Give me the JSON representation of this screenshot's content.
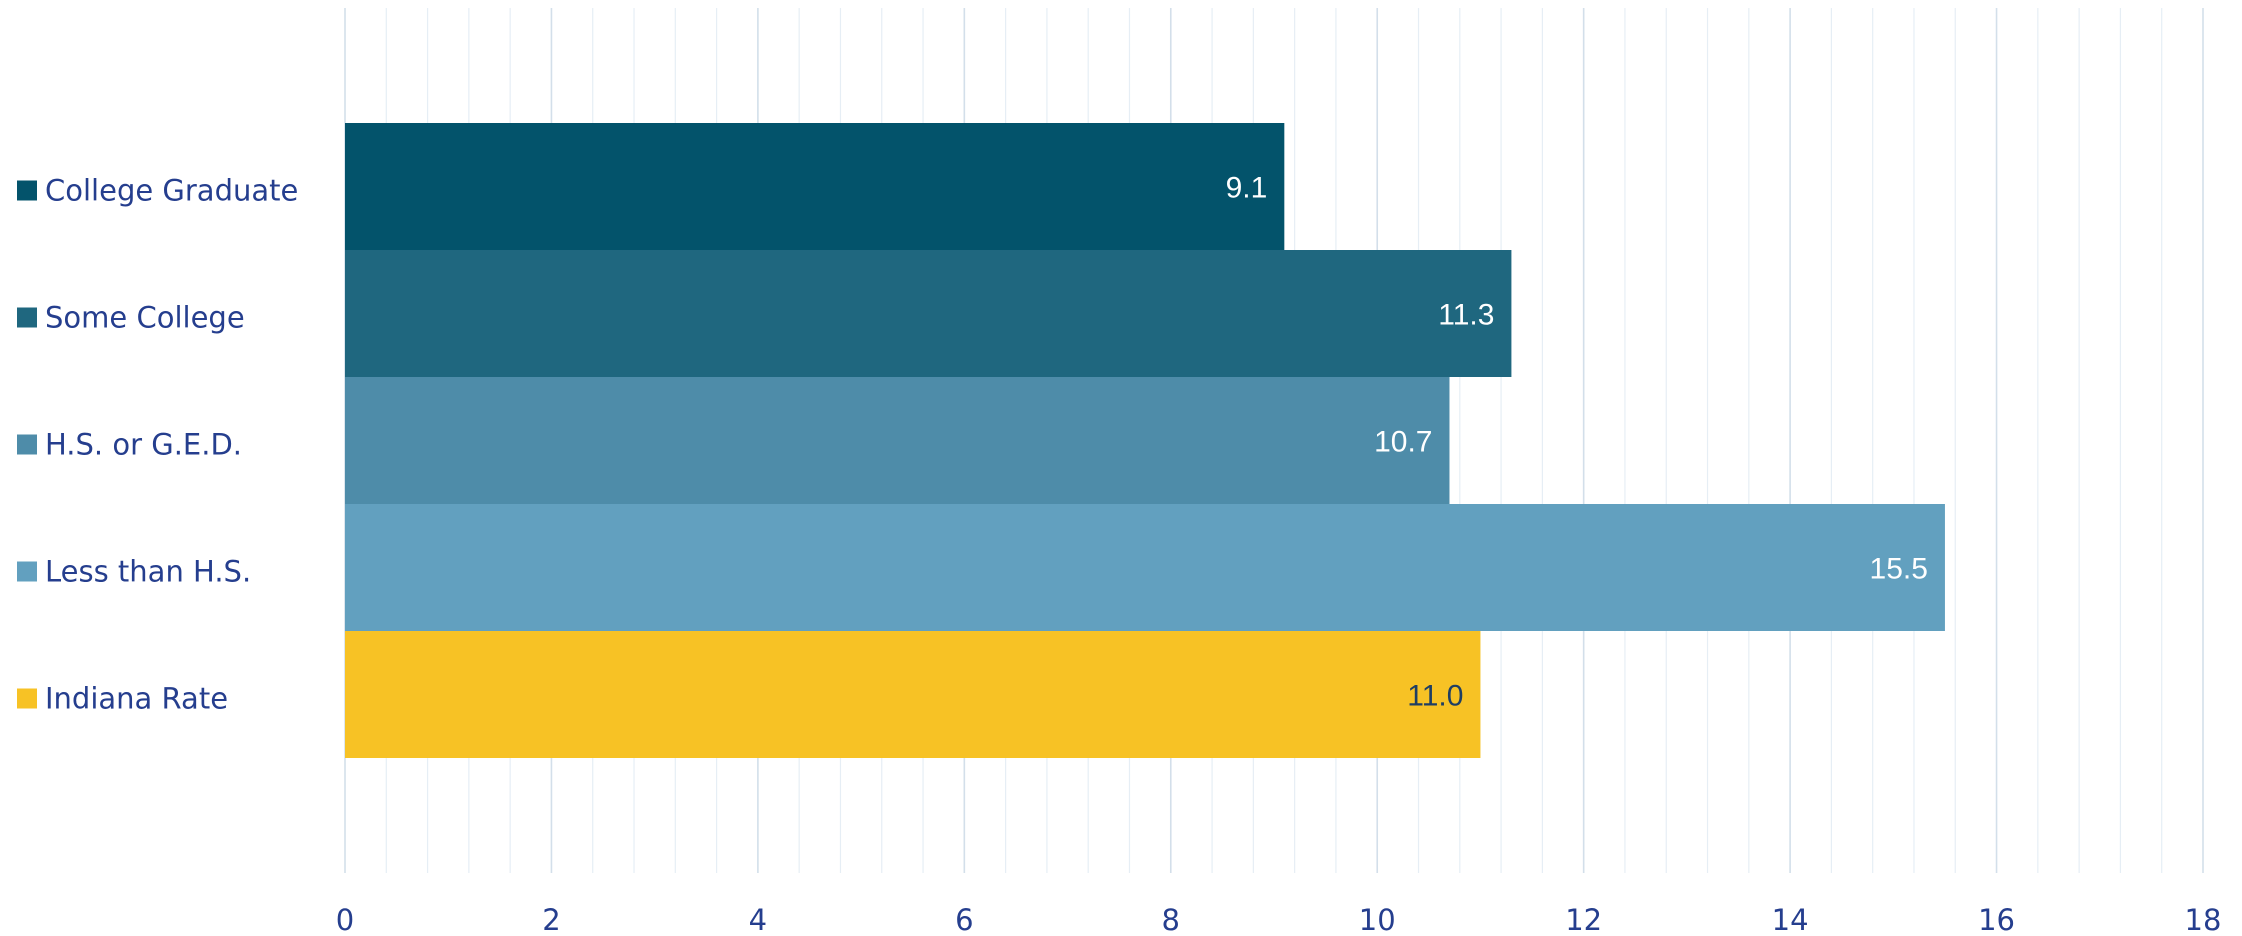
{
  "chart_data": {
    "type": "bar",
    "orientation": "horizontal",
    "title": "",
    "xlabel": "",
    "ylabel": "",
    "xlim": [
      0,
      18
    ],
    "x_ticks": [
      0,
      2,
      4,
      6,
      8,
      10,
      12,
      14,
      16,
      18
    ],
    "grid": "vertical major and minor gridlines",
    "legend_placement": "left",
    "categories": [
      "College Graduate",
      "Some College",
      "H.S. or G.E.D.",
      "Less than H.S.",
      "Indiana Rate"
    ],
    "values": [
      9.1,
      11.3,
      10.7,
      15.5,
      11.0
    ],
    "value_labels": [
      "9.1",
      "11.3",
      "10.7",
      "15.5",
      "11.0"
    ],
    "colors": [
      "#03536b",
      "#1f677f",
      "#4e8ca9",
      "#62a0bf",
      "#f7c225"
    ],
    "label_colors": [
      "#ffffff",
      "#ffffff",
      "#ffffff",
      "#ffffff",
      "#1f3e63"
    ],
    "legend_text_color": "#253e8e",
    "axis_text_color": "#253e8e",
    "grid_color": "#d6e1ec"
  }
}
